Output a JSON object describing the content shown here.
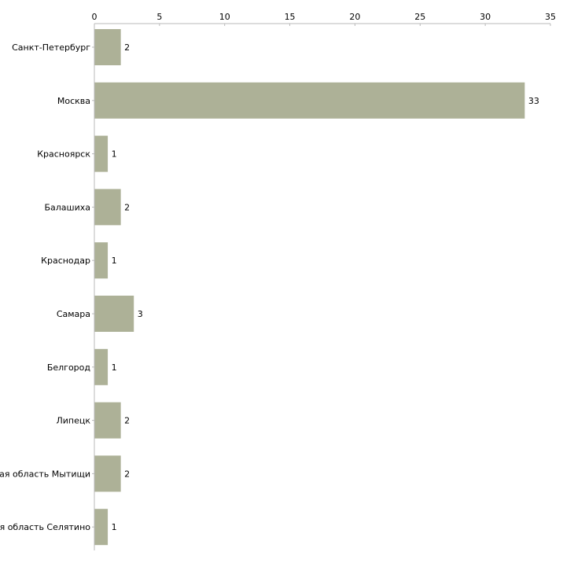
{
  "chart_data": {
    "type": "bar",
    "orientation": "horizontal",
    "title": "",
    "xlabel": "",
    "ylabel": "",
    "xlim": [
      0,
      35
    ],
    "x_ticks": [
      0,
      5,
      10,
      15,
      20,
      25,
      30,
      35
    ],
    "x_axis_position": "top",
    "grid": false,
    "bar_color": "#adb197",
    "categories": [
      "Санкт-Петербург",
      "Москва",
      "Красноярск",
      "Балашиха",
      "Краснодар",
      "Самара",
      "Белгород",
      "Липецк",
      "Московская область Мытищи",
      "Московская область Селятино"
    ],
    "values": [
      2,
      33,
      1,
      2,
      1,
      3,
      1,
      2,
      2,
      1
    ]
  }
}
